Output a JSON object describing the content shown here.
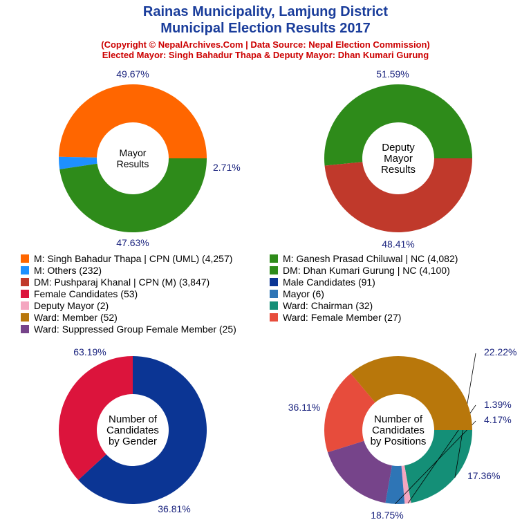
{
  "title": {
    "line1": "Rainas Municipality, Lamjung District",
    "line2": "Municipal Election Results 2017",
    "subtitle1": "(Copyright © NepalArchives.Com | Data Source: Nepal Election Commission)",
    "subtitle2": "Elected Mayor: Singh Bahadur Thapa & Deputy Mayor: Dhan Kumari Gurung"
  },
  "legend": [
    {
      "label": "M: Singh Bahadur Thapa | CPN (UML) (4,257)",
      "color": "#ff6600"
    },
    {
      "label": "M: Ganesh Prasad Chiluwal | NC (4,082)",
      "color": "#2e8b1a"
    },
    {
      "label": "M: Others (232)",
      "color": "#1e90ff"
    },
    {
      "label": "DM: Dhan Kumari Gurung | NC (4,100)",
      "color": "#2e8b1a"
    },
    {
      "label": "DM: Pushparaj Khanal | CPN (M) (3,847)",
      "color": "#c0392b"
    },
    {
      "label": "Male Candidates (91)",
      "color": "#0b3594"
    },
    {
      "label": "Female Candidates (53)",
      "color": "#dc143c"
    },
    {
      "label": "Mayor (6)",
      "color": "#2e75b6"
    },
    {
      "label": "Deputy Mayor (2)",
      "color": "#f4a6c0"
    },
    {
      "label": "Ward: Chairman (32)",
      "color": "#148f77"
    },
    {
      "label": "Ward: Member (52)",
      "color": "#b8770b"
    },
    {
      "label": "Ward: Female Member (27)",
      "color": "#e74c3c"
    },
    {
      "label": "Ward: Suppressed Group Female Member (25)",
      "color": "#76448a"
    }
  ],
  "chart_data": [
    {
      "type": "pie",
      "center_label": [
        "Mayor",
        "Results"
      ],
      "slices": [
        {
          "name": "M: Singh Bahadur Thapa | CPN (UML)",
          "value": 4257,
          "label": "49.67%",
          "color": "#ff6600"
        },
        {
          "name": "M: Others",
          "value": 232,
          "label": "2.71%",
          "color": "#1e90ff"
        },
        {
          "name": "M: Ganesh Prasad Chiluwal | NC",
          "value": 4082,
          "label": "47.63%",
          "color": "#2e8b1a"
        }
      ]
    },
    {
      "type": "pie",
      "center_label": [
        "Deputy",
        "Mayor",
        "Results"
      ],
      "slices": [
        {
          "name": "DM: Dhan Kumari Gurung | NC",
          "value": 4100,
          "label": "51.59%",
          "color": "#2e8b1a"
        },
        {
          "name": "DM: Pushparaj Khanal | CPN (M)",
          "value": 3847,
          "label": "48.41%",
          "color": "#c0392b"
        }
      ]
    },
    {
      "type": "pie",
      "center_label": [
        "Number of",
        "Candidates",
        "by Gender"
      ],
      "slices": [
        {
          "name": "Male Candidates",
          "value": 91,
          "label": "63.19%",
          "color": "#0b3594"
        },
        {
          "name": "Female Candidates",
          "value": 53,
          "label": "36.81%",
          "color": "#dc143c"
        }
      ]
    },
    {
      "type": "pie",
      "center_label": [
        "Number of",
        "Candidates",
        "by Positions"
      ],
      "slices": [
        {
          "name": "Ward: Chairman",
          "value": 32,
          "label": "22.22%",
          "color": "#148f77"
        },
        {
          "name": "Deputy Mayor",
          "value": 2,
          "label": "1.39%",
          "color": "#f4a6c0"
        },
        {
          "name": "Mayor",
          "value": 6,
          "label": "4.17%",
          "color": "#2e75b6"
        },
        {
          "name": "Ward: Suppressed Group Female Member",
          "value": 25,
          "label": "17.36%",
          "color": "#76448a"
        },
        {
          "name": "Ward: Female Member",
          "value": 27,
          "label": "18.75%",
          "color": "#e74c3c"
        },
        {
          "name": "Ward: Member",
          "value": 52,
          "label": "36.11%",
          "color": "#b8770b"
        }
      ]
    }
  ]
}
